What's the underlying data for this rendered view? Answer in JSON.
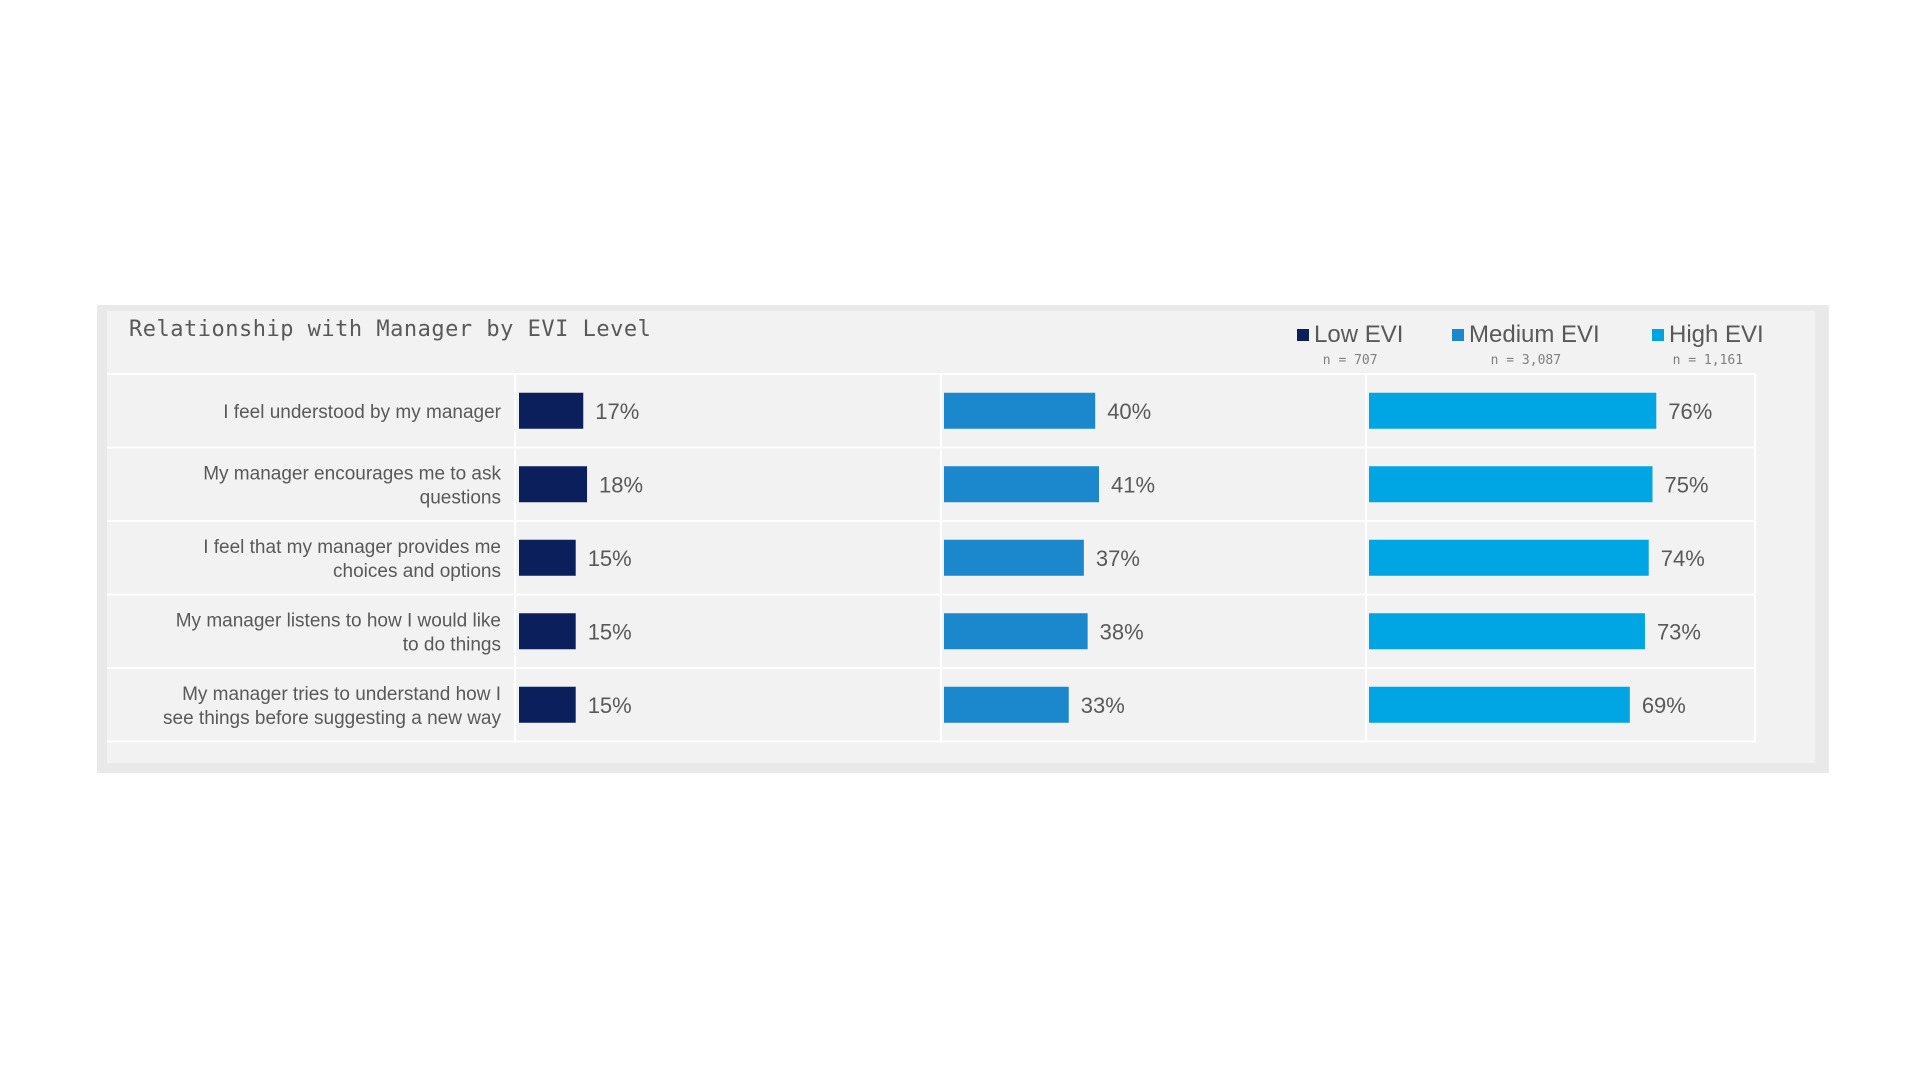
{
  "chart_data": {
    "type": "bar",
    "title": "Relationship with Manager by EVI Level",
    "categories": [
      "I feel understood by my manager",
      "My manager encourages me to ask questions",
      "I feel that my manager provides me choices and options",
      "My manager listens to how I would like to do things",
      "My manager tries to understand how I see things before suggesting a new way"
    ],
    "category_lines": [
      [
        "I feel understood by my manager"
      ],
      [
        "My manager encourages me to ask",
        "questions"
      ],
      [
        "I feel that my manager provides me",
        "choices and options"
      ],
      [
        "My manager listens to how I would like",
        "to do things"
      ],
      [
        "My manager tries to understand how I",
        "see things before suggesting a new way"
      ]
    ],
    "series": [
      {
        "name": "Low EVI",
        "n_label": "n = 707",
        "color": "#0b1f5c",
        "values": [
          17,
          18,
          15,
          15,
          15
        ],
        "labels": [
          "17%",
          "18%",
          "15%",
          "15%",
          "15%"
        ]
      },
      {
        "name": "Medium EVI",
        "n_label": "n = 3,087",
        "color": "#1b87cc",
        "values": [
          40,
          41,
          37,
          38,
          33
        ],
        "labels": [
          "40%",
          "41%",
          "37%",
          "38%",
          "33%"
        ]
      },
      {
        "name": "High EVI",
        "n_label": "n = 1,161",
        "color": "#00a5e3",
        "values": [
          76,
          75,
          74,
          73,
          69
        ],
        "labels": [
          "76%",
          "75%",
          "74%",
          "73%",
          "69%"
        ]
      }
    ],
    "value_unit": "%",
    "xlim": [
      0,
      100
    ],
    "layout": "small-multiples-by-series",
    "legend_position": "top-right",
    "grid": false
  }
}
